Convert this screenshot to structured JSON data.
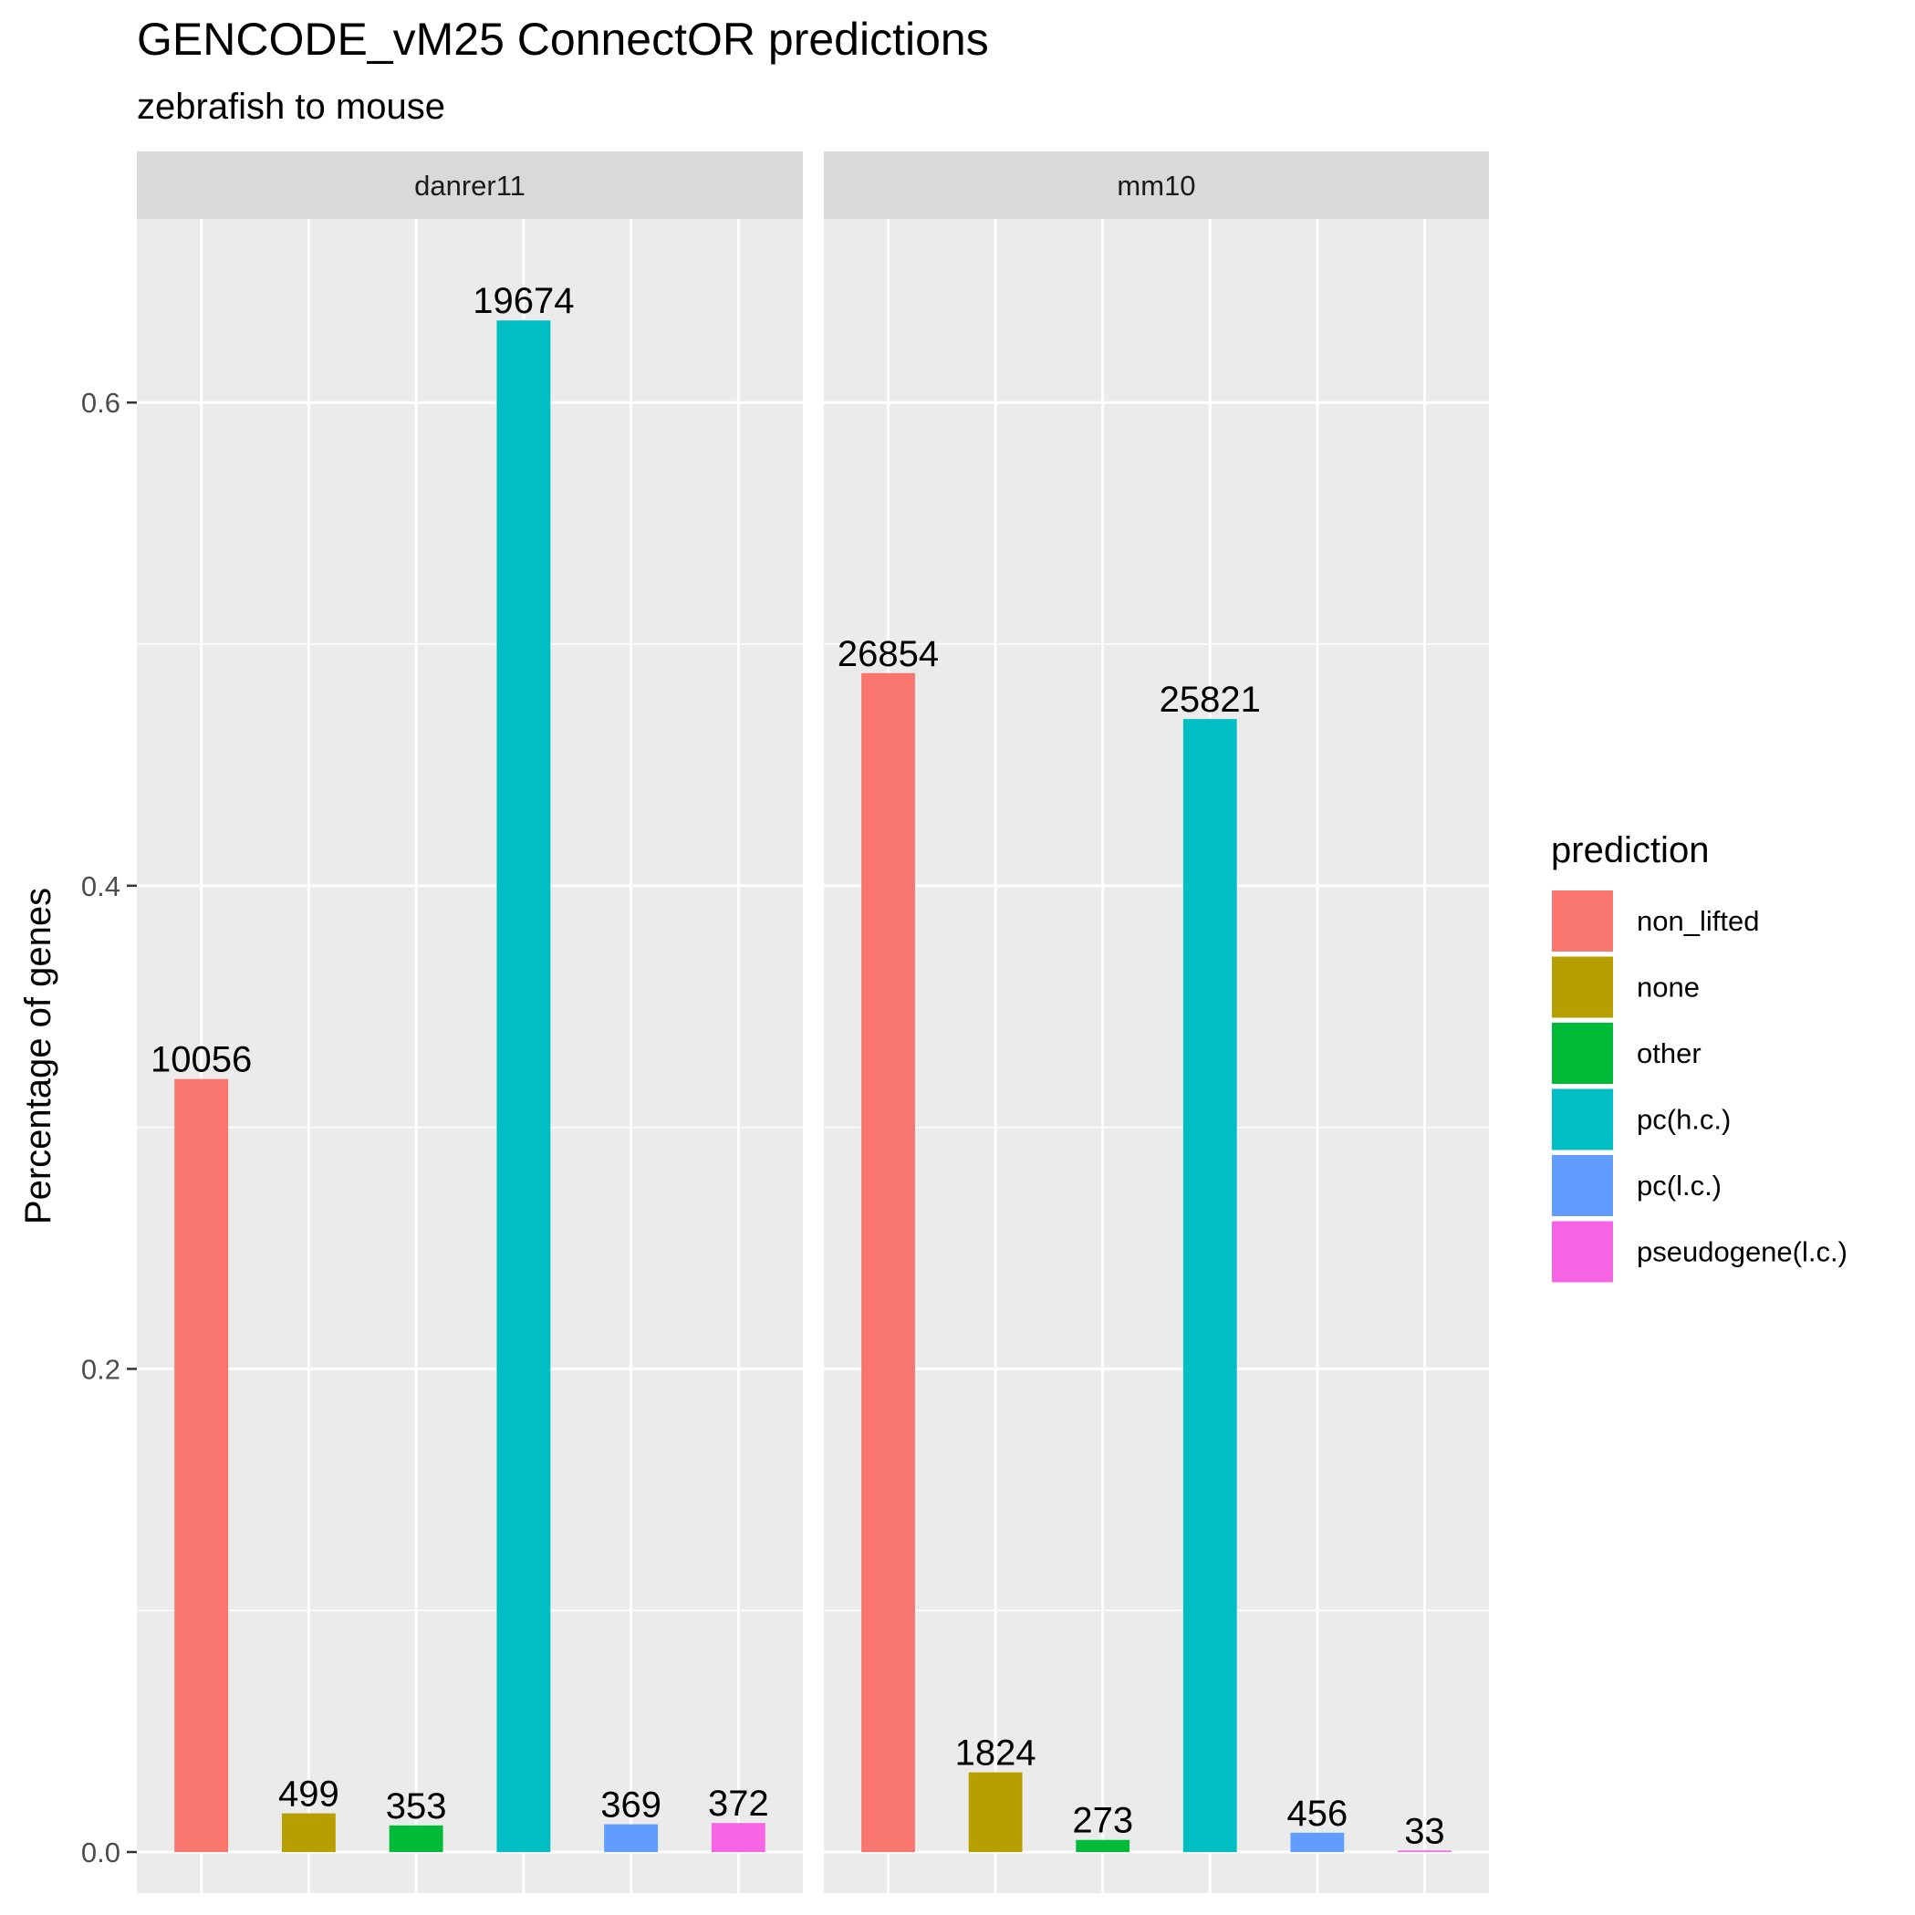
{
  "chart_data": {
    "type": "bar",
    "title": "GENCODE_vM25 ConnectOR predictions",
    "subtitle": "zebrafish to mouse",
    "xlabel": "",
    "ylabel": "Percentage of genes",
    "ylim": [
      -0.017,
      0.676
    ],
    "y_ticks": [
      0.0,
      0.2,
      0.4,
      0.6
    ],
    "y_tick_labels": [
      "0.0",
      "0.2",
      "0.4",
      "0.6"
    ],
    "grid": true,
    "legend": {
      "title": "prediction",
      "position": "right",
      "entries": [
        "non_lifted",
        "none",
        "other",
        "pc(h.c.)",
        "pc(l.c.)",
        "pseudogene(l.c.)"
      ]
    },
    "categories": [
      "non_lifted",
      "none",
      "other",
      "pc(h.c.)",
      "pc(l.c.)",
      "pseudogene(l.c.)"
    ],
    "colors": {
      "non_lifted": "#F8766D",
      "none": "#B79F00",
      "other": "#00BA38",
      "pc(h.c.)": "#00BFC4",
      "pc(l.c.)": "#619CFF",
      "pseudogene(l.c.)": "#F564E3"
    },
    "panels": [
      {
        "name": "danrer11",
        "values": [
          0.32,
          0.016,
          0.011,
          0.634,
          0.0115,
          0.012
        ],
        "labels": [
          "10056",
          "499",
          "353",
          "19674",
          "369",
          "372"
        ]
      },
      {
        "name": "mm10",
        "values": [
          0.488,
          0.033,
          0.005,
          0.469,
          0.008,
          0.0006
        ],
        "labels": [
          "26854",
          "1824",
          "273",
          "25821",
          "456",
          "33"
        ]
      }
    ]
  },
  "styles": {
    "panel_background": "#EBEBEB",
    "strip_background": "#D9D9D9",
    "grid_color": "#FFFFFF",
    "tick_color": "#333333",
    "text_color": "#000000",
    "axis_text_color": "#4D4D4D"
  }
}
